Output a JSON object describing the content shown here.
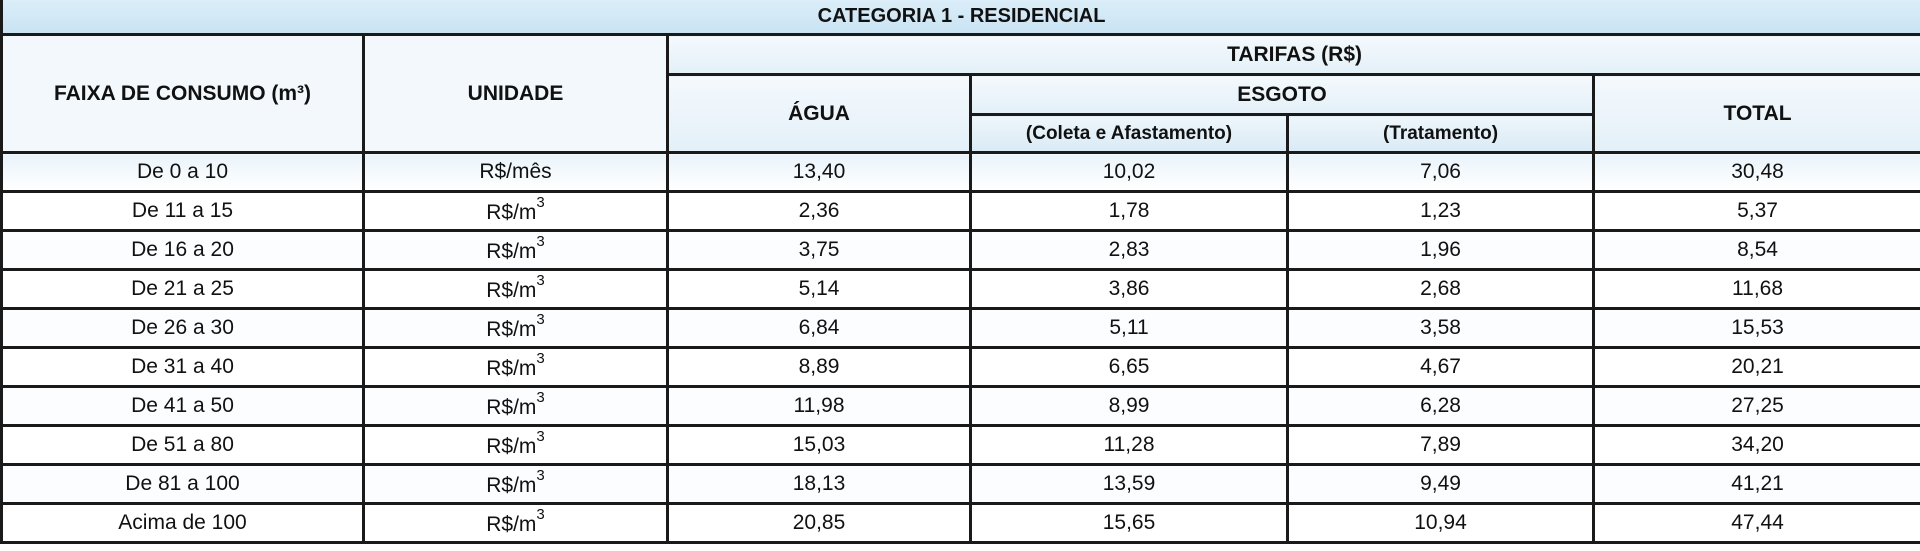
{
  "table": {
    "category_title": "CATEGORIA 1 - RESIDENCIAL",
    "headers": {
      "faixa": "FAIXA DE CONSUMO (m³)",
      "unidade": "UNIDADE",
      "tarifas": "TARIFAS (R$)",
      "agua": "ÁGUA",
      "esgoto": "ESGOTO",
      "coleta": "(Coleta e Afastamento)",
      "tratamento": "(Tratamento)",
      "total": "TOTAL"
    },
    "rows": [
      {
        "faixa": "De 0 a 10",
        "unidade": "R$/mês",
        "unit_sup": "",
        "agua": "13,40",
        "coleta": "10,02",
        "tratamento": "7,06",
        "total": "30,48"
      },
      {
        "faixa": "De 11 a 15",
        "unidade": "R$/m",
        "unit_sup": "3",
        "agua": "2,36",
        "coleta": "1,78",
        "tratamento": "1,23",
        "total": "5,37"
      },
      {
        "faixa": "De 16 a 20",
        "unidade": "R$/m",
        "unit_sup": "3",
        "agua": "3,75",
        "coleta": "2,83",
        "tratamento": "1,96",
        "total": "8,54"
      },
      {
        "faixa": "De 21 a 25",
        "unidade": "R$/m",
        "unit_sup": "3",
        "agua": "5,14",
        "coleta": "3,86",
        "tratamento": "2,68",
        "total": "11,68"
      },
      {
        "faixa": "De 26 a 30",
        "unidade": "R$/m",
        "unit_sup": "3",
        "agua": "6,84",
        "coleta": "5,11",
        "tratamento": "3,58",
        "total": "15,53"
      },
      {
        "faixa": "De 31 a 40",
        "unidade": "R$/m",
        "unit_sup": "3",
        "agua": "8,89",
        "coleta": "6,65",
        "tratamento": "4,67",
        "total": "20,21"
      },
      {
        "faixa": "De 41 a 50",
        "unidade": "R$/m",
        "unit_sup": "3",
        "agua": "11,98",
        "coleta": "8,99",
        "tratamento": "6,28",
        "total": "27,25"
      },
      {
        "faixa": "De 51 a 80",
        "unidade": "R$/m",
        "unit_sup": "3",
        "agua": "15,03",
        "coleta": "11,28",
        "tratamento": "7,89",
        "total": "34,20"
      },
      {
        "faixa": "De 81 a 100",
        "unidade": "R$/m",
        "unit_sup": "3",
        "agua": "18,13",
        "coleta": "13,59",
        "tratamento": "9,49",
        "total": "41,21"
      },
      {
        "faixa": "Acima de 100",
        "unidade": "R$/m",
        "unit_sup": "3",
        "agua": "20,85",
        "coleta": "15,65",
        "tratamento": "10,94",
        "total": "47,44"
      }
    ]
  }
}
